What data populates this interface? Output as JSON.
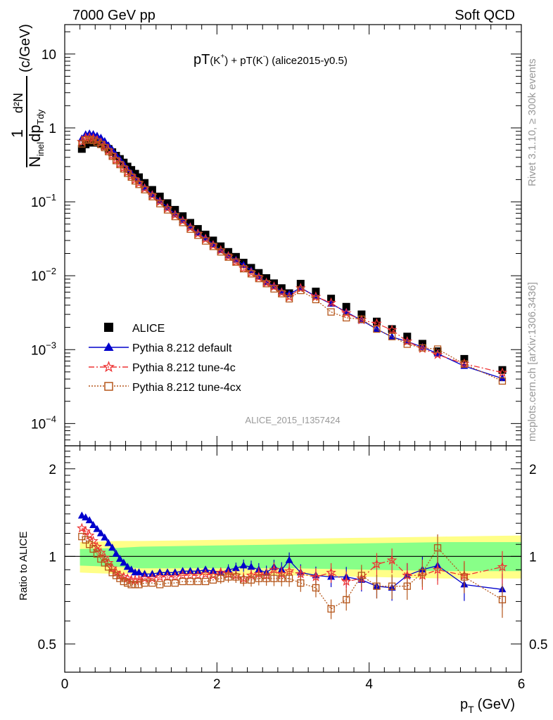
{
  "header": {
    "left": "7000 GeV pp",
    "right": "Soft QCD"
  },
  "plot_title": {
    "main1": "pT",
    "part1": "(K",
    "sup1": "+",
    "mid": ") + pT",
    "part2": "(K",
    "sup2": "-",
    "end": ") (alice2015-y0.5)"
  },
  "side_text": {
    "rivet": "Rivet 3.1.10, ≥ 300k events",
    "mcplots": "mcplots.cern.ch [arXiv:1306.3436]"
  },
  "watermark": "ALICE_2015_I1357424",
  "ylabel_top": {
    "one": "1",
    "d2n": "d²N",
    "n": "N",
    "inel": "inel",
    "dp": "dp",
    "tdy": "Tdy",
    "unit": "(c/GeV)"
  },
  "ylabel_bottom": "Ratio to ALICE",
  "xlabel": {
    "p": "p",
    "sub": "T",
    "unit": "(GeV)"
  },
  "x_ticks": [
    "0",
    "2",
    "4",
    "6"
  ],
  "y_ticks_top": [
    {
      "base": "10",
      "exp": ""
    },
    {
      "base": "1",
      "exp": ""
    },
    {
      "base": "10",
      "exp": "−1"
    },
    {
      "base": "10",
      "exp": "−2"
    },
    {
      "base": "10",
      "exp": "−3"
    },
    {
      "base": "10",
      "exp": "−4"
    }
  ],
  "y_ticks_bottom": [
    "2",
    "1",
    "0.5"
  ],
  "legend": [
    {
      "label": "ALICE"
    },
    {
      "label": "Pythia 8.212 default"
    },
    {
      "label": "Pythia 8.212 tune-4c"
    },
    {
      "label": "Pythia 8.212 tune-4cx"
    }
  ],
  "colors": {
    "alice": "#000000",
    "default": "#0000cc",
    "tune4c": "#ee3333",
    "tune4cx": "#b5561a",
    "band_outer": "#ffff88",
    "band_inner": "#88ff88"
  },
  "chart_data": {
    "type": "scatter",
    "xlabel": "p_T (GeV)",
    "ylabel": "1/N_inel d²N/dp_T dy (c/GeV)",
    "xlim": [
      0,
      6
    ],
    "ylim_top": [
      5e-05,
      25
    ],
    "yscale_top": "log",
    "ylim_ratio": [
      0.4,
      2.4
    ],
    "yscale_ratio": "log",
    "legend_position": "bottom-left",
    "x": [
      0.225,
      0.275,
      0.325,
      0.375,
      0.425,
      0.475,
      0.525,
      0.575,
      0.625,
      0.675,
      0.725,
      0.775,
      0.825,
      0.875,
      0.925,
      0.975,
      1.05,
      1.15,
      1.25,
      1.35,
      1.45,
      1.55,
      1.65,
      1.75,
      1.85,
      1.95,
      2.05,
      2.15,
      2.25,
      2.35,
      2.45,
      2.55,
      2.65,
      2.75,
      2.85,
      2.95,
      3.1,
      3.3,
      3.5,
      3.7,
      3.9,
      4.1,
      4.3,
      4.5,
      4.7,
      4.9,
      5.25,
      5.75
    ],
    "series": [
      {
        "name": "ALICE",
        "values": [
          0.52,
          0.6,
          0.63,
          0.64,
          0.63,
          0.61,
          0.57,
          0.52,
          0.47,
          0.42,
          0.38,
          0.34,
          0.3,
          0.27,
          0.24,
          0.215,
          0.18,
          0.145,
          0.118,
          0.096,
          0.078,
          0.064,
          0.052,
          0.043,
          0.036,
          0.03,
          0.025,
          0.021,
          0.018,
          0.015,
          0.0128,
          0.0109,
          0.0093,
          0.0079,
          0.0068,
          0.0058,
          0.0078,
          0.0061,
          0.0049,
          0.0038,
          0.003,
          0.0024,
          0.0019,
          0.0015,
          0.0012,
          0.00095,
          0.00075,
          0.00053
        ]
      },
      {
        "name": "Pythia 8.212 default",
        "ratio": [
          1.38,
          1.36,
          1.33,
          1.28,
          1.24,
          1.2,
          1.16,
          1.11,
          1.07,
          1.02,
          0.98,
          0.95,
          0.92,
          0.9,
          0.88,
          0.88,
          0.87,
          0.87,
          0.88,
          0.88,
          0.88,
          0.89,
          0.89,
          0.89,
          0.9,
          0.89,
          0.88,
          0.9,
          0.91,
          0.93,
          0.92,
          0.9,
          0.88,
          0.92,
          0.9,
          0.97,
          0.88,
          0.86,
          0.85,
          0.85,
          0.83,
          0.79,
          0.78,
          0.86,
          0.9,
          0.93,
          0.8,
          0.77
        ]
      },
      {
        "name": "Pythia 8.212 tune-4c",
        "ratio": [
          1.25,
          1.22,
          1.18,
          1.13,
          1.08,
          1.03,
          0.99,
          0.95,
          0.91,
          0.88,
          0.86,
          0.85,
          0.84,
          0.83,
          0.83,
          0.83,
          0.84,
          0.84,
          0.85,
          0.85,
          0.85,
          0.86,
          0.86,
          0.86,
          0.87,
          0.86,
          0.88,
          0.87,
          0.86,
          0.84,
          0.86,
          0.87,
          0.86,
          0.9,
          0.87,
          0.89,
          0.87,
          0.85,
          0.88,
          0.82,
          0.84,
          0.94,
          0.97,
          0.86,
          0.86,
          0.9,
          0.86,
          0.92
        ]
      },
      {
        "name": "Pythia 8.212 tune-4cx",
        "ratio": [
          1.17,
          1.14,
          1.1,
          1.06,
          1.02,
          0.98,
          0.95,
          0.92,
          0.88,
          0.86,
          0.84,
          0.82,
          0.81,
          0.8,
          0.8,
          0.8,
          0.81,
          0.81,
          0.8,
          0.81,
          0.81,
          0.82,
          0.82,
          0.82,
          0.82,
          0.83,
          0.84,
          0.85,
          0.85,
          0.83,
          0.83,
          0.84,
          0.84,
          0.84,
          0.84,
          0.84,
          0.81,
          0.78,
          0.66,
          0.71,
          0.86,
          0.79,
          0.79,
          0.79,
          0.88,
          1.07,
          0.85,
          0.71
        ]
      }
    ],
    "ratio_band": {
      "x": [
        0.2,
        0.7,
        1.0,
        2.0,
        3.0,
        4.0,
        5.0,
        6.0
      ],
      "inner_lo": [
        0.93,
        0.92,
        0.91,
        0.91,
        0.91,
        0.9,
        0.89,
        0.89
      ],
      "inner_hi": [
        1.06,
        1.07,
        1.08,
        1.09,
        1.1,
        1.11,
        1.12,
        1.12
      ],
      "outer_lo": [
        0.88,
        0.87,
        0.87,
        0.86,
        0.86,
        0.85,
        0.84,
        0.84
      ],
      "outer_hi": [
        1.12,
        1.13,
        1.13,
        1.14,
        1.15,
        1.16,
        1.17,
        1.18
      ]
    }
  }
}
